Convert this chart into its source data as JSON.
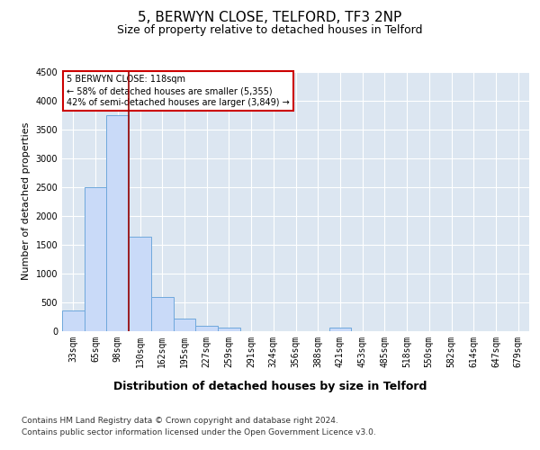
{
  "title1": "5, BERWYN CLOSE, TELFORD, TF3 2NP",
  "title2": "Size of property relative to detached houses in Telford",
  "xlabel": "Distribution of detached houses by size in Telford",
  "ylabel": "Number of detached properties",
  "categories": [
    "33sqm",
    "65sqm",
    "98sqm",
    "130sqm",
    "162sqm",
    "195sqm",
    "227sqm",
    "259sqm",
    "291sqm",
    "324sqm",
    "356sqm",
    "388sqm",
    "421sqm",
    "453sqm",
    "485sqm",
    "518sqm",
    "550sqm",
    "582sqm",
    "614sqm",
    "647sqm",
    "679sqm"
  ],
  "values": [
    350,
    2500,
    3750,
    1640,
    590,
    210,
    90,
    50,
    0,
    0,
    0,
    0,
    60,
    0,
    0,
    0,
    0,
    0,
    0,
    0,
    0
  ],
  "bar_color": "#c9daf8",
  "bar_edge_color": "#6fa8dc",
  "line_color": "#990000",
  "line_x_index": 2.5,
  "annotation_text1": "5 BERWYN CLOSE: 118sqm",
  "annotation_text2": "← 58% of detached houses are smaller (5,355)",
  "annotation_text3": "42% of semi-detached houses are larger (3,849) →",
  "annotation_box_color": "#ffffff",
  "annotation_box_edge": "#cc0000",
  "ylim": [
    0,
    4500
  ],
  "yticks": [
    0,
    500,
    1000,
    1500,
    2000,
    2500,
    3000,
    3500,
    4000,
    4500
  ],
  "footer1": "Contains HM Land Registry data © Crown copyright and database right 2024.",
  "footer2": "Contains public sector information licensed under the Open Government Licence v3.0.",
  "bg_color": "#ffffff",
  "plot_bg_color": "#dce6f1",
  "grid_color": "#ffffff",
  "title1_fontsize": 11,
  "title2_fontsize": 9,
  "xlabel_fontsize": 9,
  "ylabel_fontsize": 8,
  "tick_fontsize": 7,
  "footer_fontsize": 6.5,
  "annotation_fontsize": 7
}
